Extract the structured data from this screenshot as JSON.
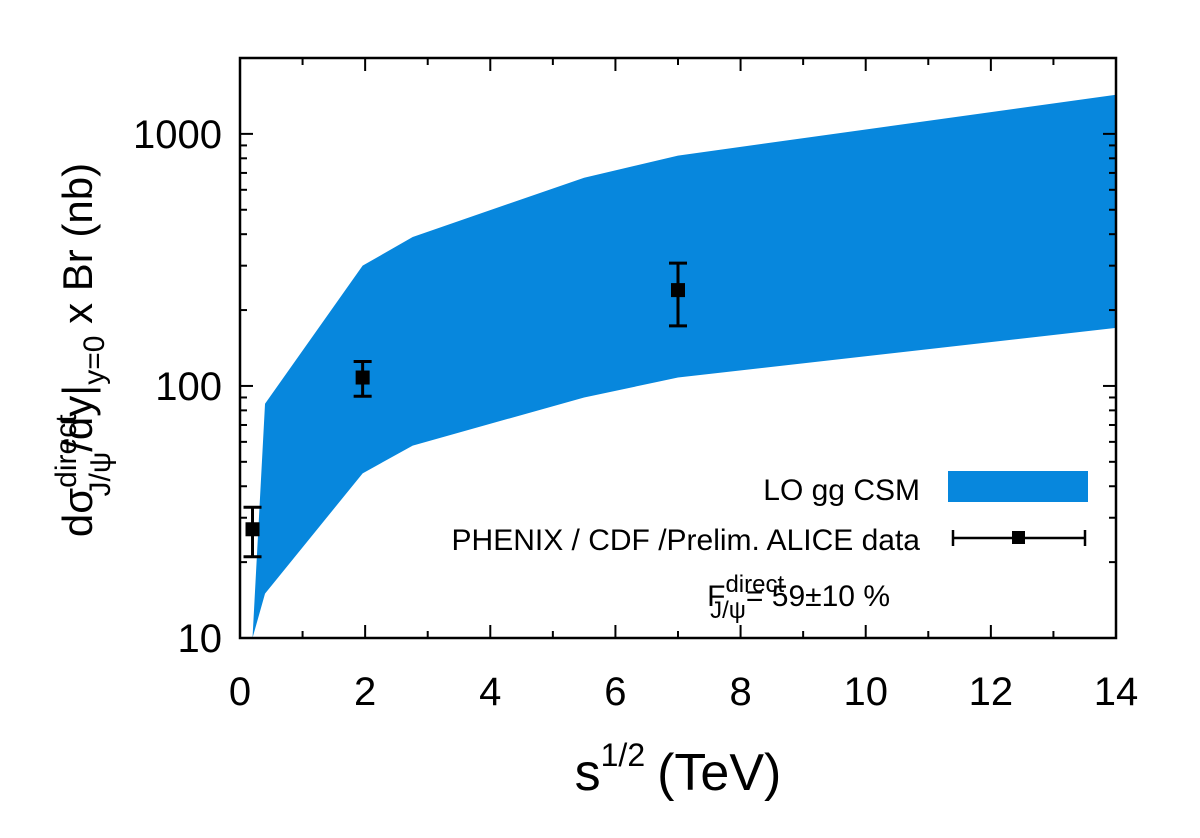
{
  "chart_data": {
    "type": "scatter",
    "x_axis": {
      "label_base": "s",
      "label_sup": "1/2",
      "label_unit": "(TeV)",
      "range": [
        0,
        14
      ],
      "ticks": [
        0,
        2,
        4,
        6,
        8,
        10,
        12,
        14
      ],
      "tick_labels": [
        "0",
        "2",
        "4",
        "6",
        "8",
        "10",
        "12",
        "14"
      ],
      "minor_ticks": [
        1,
        3,
        5,
        7,
        9,
        11,
        13
      ]
    },
    "y_axis": {
      "scale": "log",
      "range": [
        10,
        2000
      ],
      "ticks": [
        10,
        100,
        1000
      ],
      "tick_labels": [
        "10",
        "100",
        "1000"
      ],
      "minor_ticks": [
        20,
        30,
        40,
        50,
        60,
        70,
        80,
        90,
        200,
        300,
        400,
        500,
        600,
        700,
        800,
        900
      ],
      "label_parts": {
        "d_sigma": "dσ",
        "sup": "direct",
        "sub": "J/ψ",
        "mid": "/dy|",
        "sub2": "y=0",
        "tail": " x Br (nb)"
      }
    },
    "series": [
      {
        "name": "LO gg CSM",
        "type": "band",
        "color": "#0787dd",
        "upper": [
          {
            "x": 0.2,
            "y": 10
          },
          {
            "x": 0.4,
            "y": 85
          },
          {
            "x": 1.96,
            "y": 300
          },
          {
            "x": 2.76,
            "y": 390
          },
          {
            "x": 5.5,
            "y": 670
          },
          {
            "x": 7.0,
            "y": 820
          },
          {
            "x": 14.0,
            "y": 1430
          }
        ],
        "lower": [
          {
            "x": 0.2,
            "y": 10
          },
          {
            "x": 0.4,
            "y": 15
          },
          {
            "x": 1.96,
            "y": 45
          },
          {
            "x": 2.76,
            "y": 58
          },
          {
            "x": 5.5,
            "y": 90
          },
          {
            "x": 7.0,
            "y": 108
          },
          {
            "x": 14.0,
            "y": 170
          }
        ]
      },
      {
        "name": "PHENIX / CDF /Prelim. ALICE data",
        "type": "errorbar",
        "color": "#000000",
        "points": [
          {
            "x": 0.2,
            "y": 27,
            "ylow": 21,
            "yhigh": 33
          },
          {
            "x": 1.96,
            "y": 108,
            "ylow": 91,
            "yhigh": 125
          },
          {
            "x": 7.0,
            "y": 240,
            "ylow": 173,
            "yhigh": 307
          }
        ]
      }
    ],
    "legend": {
      "placement": "bottom-right",
      "entries": [
        "LO gg CSM",
        "PHENIX / CDF /Prelim. ALICE data"
      ]
    },
    "annotation": {
      "base": "F",
      "sup": "direct",
      "sub": "J/ψ",
      "value": "= 59±10 %"
    }
  }
}
